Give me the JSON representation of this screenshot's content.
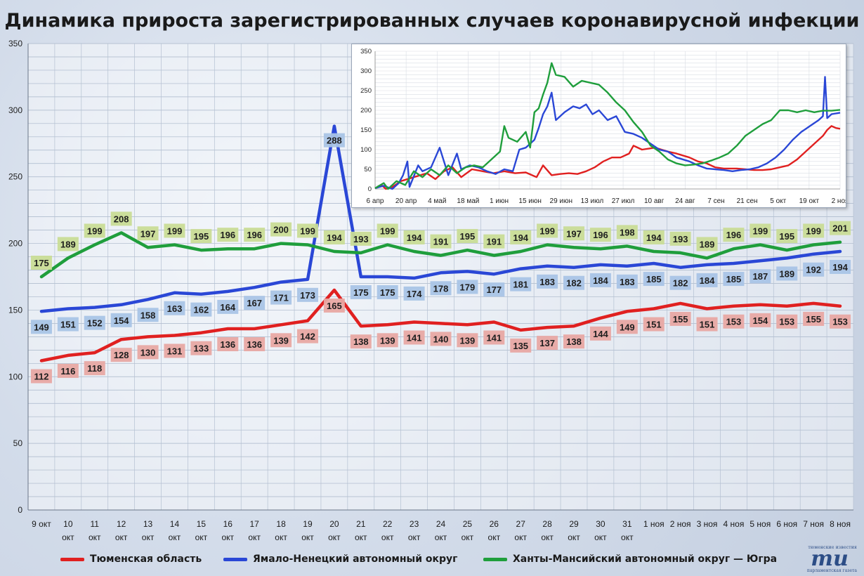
{
  "title": "Динамика прироста зарегистрированных случаев коронавирусной инфекции",
  "colors": {
    "red": "#e02020",
    "blue": "#2a47d6",
    "green": "#1f9e3c"
  },
  "chart_data": [
    {
      "type": "line",
      "title": "Динамика прироста зарегистрированных случаев коронавирусной инфекции",
      "ylim": [
        0,
        350
      ],
      "yticks": [
        0,
        50,
        100,
        150,
        200,
        250,
        300,
        350
      ],
      "grid": true,
      "legend_position": "bottom",
      "categories": [
        [
          "9 окт"
        ],
        [
          "10",
          "окт"
        ],
        [
          "11",
          "окт"
        ],
        [
          "12",
          "окт"
        ],
        [
          "13",
          "окт"
        ],
        [
          "14",
          "окт"
        ],
        [
          "15",
          "окт"
        ],
        [
          "16",
          "окт"
        ],
        [
          "17",
          "окт"
        ],
        [
          "18",
          "окт"
        ],
        [
          "19",
          "окт"
        ],
        [
          "20",
          "окт"
        ],
        [
          "21",
          "окт"
        ],
        [
          "22",
          "окт"
        ],
        [
          "23",
          "окт"
        ],
        [
          "24",
          "окт"
        ],
        [
          "25",
          "окт"
        ],
        [
          "26",
          "окт"
        ],
        [
          "27",
          "окт"
        ],
        [
          "28",
          "окт"
        ],
        [
          "29",
          "окт"
        ],
        [
          "30",
          "окт"
        ],
        [
          "31",
          "окт"
        ],
        [
          "1 ноя"
        ],
        [
          "2 ноя"
        ],
        [
          "3 ноя"
        ],
        [
          "4 ноя"
        ],
        [
          "5 ноя"
        ],
        [
          "6 ноя"
        ],
        [
          "7 ноя"
        ],
        [
          "8 ноя"
        ]
      ],
      "series": [
        {
          "name": "Тюменская область",
          "color": "#e02020",
          "values": [
            112,
            116,
            118,
            128,
            130,
            131,
            133,
            136,
            136,
            139,
            142,
            165,
            138,
            139,
            141,
            140,
            139,
            141,
            135,
            137,
            138,
            144,
            149,
            151,
            155,
            151,
            153,
            154,
            153,
            155,
            153
          ]
        },
        {
          "name": "Ямало-Ненецкий автономный округ",
          "color": "#2a47d6",
          "values": [
            149,
            151,
            152,
            154,
            158,
            163,
            162,
            164,
            167,
            171,
            173,
            288,
            175,
            175,
            174,
            178,
            179,
            177,
            181,
            183,
            182,
            184,
            183,
            185,
            182,
            184,
            185,
            187,
            189,
            192,
            194
          ]
        },
        {
          "name": "Ханты-Мансийский автономный округ — Югра",
          "color": "#1f9e3c",
          "values": [
            175,
            189,
            199,
            208,
            197,
            199,
            195,
            196,
            196,
            200,
            199,
            194,
            193,
            199,
            194,
            191,
            195,
            191,
            194,
            199,
            197,
            196,
            198,
            194,
            193,
            189,
            196,
            199,
            195,
            199,
            201
          ]
        }
      ]
    },
    {
      "type": "line",
      "ylim": [
        0,
        350
      ],
      "yticks": [
        0,
        50,
        100,
        150,
        200,
        250,
        300,
        350
      ],
      "grid": true,
      "xticks": [
        "6 апр",
        "20 апр",
        "4 май",
        "18 май",
        "1 июн",
        "15 июн",
        "29 июн",
        "13 июл",
        "27 июл",
        "10 авг",
        "24 авг",
        "7 сен",
        "21 сен",
        "5 окт",
        "19 окт",
        "2 ноя"
      ],
      "x_days": 216,
      "series": [
        {
          "color": "#e02020",
          "knots": [
            [
              0,
              2
            ],
            [
              3,
              10
            ],
            [
              5,
              0
            ],
            [
              8,
              5
            ],
            [
              12,
              20
            ],
            [
              18,
              30
            ],
            [
              24,
              40
            ],
            [
              28,
              25
            ],
            [
              32,
              45
            ],
            [
              36,
              55
            ],
            [
              40,
              30
            ],
            [
              45,
              50
            ],
            [
              50,
              45
            ],
            [
              55,
              40
            ],
            [
              60,
              45
            ],
            [
              65,
              40
            ],
            [
              70,
              42
            ],
            [
              75,
              30
            ],
            [
              78,
              60
            ],
            [
              82,
              35
            ],
            [
              86,
              38
            ],
            [
              90,
              40
            ],
            [
              94,
              38
            ],
            [
              98,
              45
            ],
            [
              102,
              55
            ],
            [
              106,
              70
            ],
            [
              110,
              80
            ],
            [
              114,
              80
            ],
            [
              118,
              90
            ],
            [
              120,
              110
            ],
            [
              124,
              100
            ],
            [
              130,
              105
            ],
            [
              136,
              95
            ],
            [
              140,
              90
            ],
            [
              146,
              80
            ],
            [
              150,
              70
            ],
            [
              154,
              65
            ],
            [
              158,
              55
            ],
            [
              162,
              52
            ],
            [
              168,
              52
            ],
            [
              172,
              50
            ],
            [
              176,
              48
            ],
            [
              180,
              48
            ],
            [
              184,
              50
            ],
            [
              188,
              55
            ],
            [
              192,
              60
            ],
            [
              196,
              75
            ],
            [
              200,
              95
            ],
            [
              204,
              115
            ],
            [
              208,
              135
            ],
            [
              210,
              150
            ],
            [
              212,
              160
            ],
            [
              214,
              155
            ],
            [
              216,
              153
            ]
          ]
        },
        {
          "color": "#2a47d6",
          "knots": [
            [
              0,
              2
            ],
            [
              4,
              8
            ],
            [
              8,
              0
            ],
            [
              11,
              15
            ],
            [
              13,
              35
            ],
            [
              15,
              70
            ],
            [
              16,
              5
            ],
            [
              20,
              60
            ],
            [
              22,
              45
            ],
            [
              26,
              55
            ],
            [
              30,
              105
            ],
            [
              34,
              35
            ],
            [
              38,
              90
            ],
            [
              40,
              50
            ],
            [
              44,
              60
            ],
            [
              48,
              55
            ],
            [
              52,
              45
            ],
            [
              56,
              38
            ],
            [
              60,
              50
            ],
            [
              64,
              45
            ],
            [
              67,
              100
            ],
            [
              70,
              105
            ],
            [
              74,
              125
            ],
            [
              76,
              155
            ],
            [
              78,
              190
            ],
            [
              80,
              210
            ],
            [
              82,
              245
            ],
            [
              84,
              175
            ],
            [
              88,
              195
            ],
            [
              92,
              210
            ],
            [
              95,
              205
            ],
            [
              98,
              215
            ],
            [
              101,
              190
            ],
            [
              104,
              200
            ],
            [
              108,
              175
            ],
            [
              112,
              185
            ],
            [
              116,
              145
            ],
            [
              120,
              140
            ],
            [
              124,
              130
            ],
            [
              128,
              115
            ],
            [
              132,
              100
            ],
            [
              136,
              95
            ],
            [
              140,
              80
            ],
            [
              146,
              70
            ],
            [
              150,
              60
            ],
            [
              154,
              52
            ],
            [
              158,
              50
            ],
            [
              162,
              48
            ],
            [
              166,
              45
            ],
            [
              170,
              48
            ],
            [
              174,
              50
            ],
            [
              178,
              55
            ],
            [
              182,
              65
            ],
            [
              186,
              80
            ],
            [
              190,
              100
            ],
            [
              194,
              125
            ],
            [
              198,
              145
            ],
            [
              202,
              160
            ],
            [
              206,
              175
            ],
            [
              208,
              185
            ],
            [
              209,
              285
            ],
            [
              210,
              180
            ],
            [
              212,
              190
            ],
            [
              214,
              192
            ],
            [
              216,
              194
            ]
          ]
        },
        {
          "color": "#1f9e3c",
          "knots": [
            [
              0,
              2
            ],
            [
              4,
              15
            ],
            [
              6,
              0
            ],
            [
              10,
              20
            ],
            [
              14,
              10
            ],
            [
              18,
              45
            ],
            [
              22,
              30
            ],
            [
              26,
              50
            ],
            [
              30,
              35
            ],
            [
              34,
              60
            ],
            [
              38,
              40
            ],
            [
              42,
              55
            ],
            [
              46,
              60
            ],
            [
              50,
              55
            ],
            [
              54,
              75
            ],
            [
              58,
              95
            ],
            [
              60,
              160
            ],
            [
              62,
              130
            ],
            [
              66,
              120
            ],
            [
              70,
              145
            ],
            [
              72,
              105
            ],
            [
              74,
              195
            ],
            [
              76,
              205
            ],
            [
              78,
              240
            ],
            [
              80,
              270
            ],
            [
              82,
              320
            ],
            [
              84,
              290
            ],
            [
              88,
              285
            ],
            [
              92,
              260
            ],
            [
              96,
              275
            ],
            [
              100,
              270
            ],
            [
              104,
              265
            ],
            [
              108,
              245
            ],
            [
              112,
              220
            ],
            [
              116,
              200
            ],
            [
              120,
              170
            ],
            [
              124,
              145
            ],
            [
              128,
              110
            ],
            [
              132,
              95
            ],
            [
              136,
              75
            ],
            [
              140,
              65
            ],
            [
              144,
              60
            ],
            [
              148,
              62
            ],
            [
              152,
              65
            ],
            [
              156,
              72
            ],
            [
              160,
              80
            ],
            [
              164,
              90
            ],
            [
              168,
              110
            ],
            [
              172,
              135
            ],
            [
              176,
              150
            ],
            [
              180,
              165
            ],
            [
              184,
              175
            ],
            [
              188,
              200
            ],
            [
              192,
              200
            ],
            [
              196,
              195
            ],
            [
              200,
              200
            ],
            [
              204,
              195
            ],
            [
              208,
              199
            ],
            [
              212,
              199
            ],
            [
              216,
              201
            ]
          ]
        }
      ]
    }
  ],
  "legend": [
    {
      "label": "Тюменская область",
      "color": "#e02020"
    },
    {
      "label": "Ямало-Ненецкий автономный округ",
      "color": "#2a47d6"
    },
    {
      "label": "Ханты-Мансийский автономный округ — Югра",
      "color": "#1f9e3c"
    }
  ],
  "logo": {
    "icon": "tyumen-izvestia-logo",
    "top_text": "тюменские известия",
    "main_text": "ти",
    "bottom_text": "парламентская газета"
  }
}
